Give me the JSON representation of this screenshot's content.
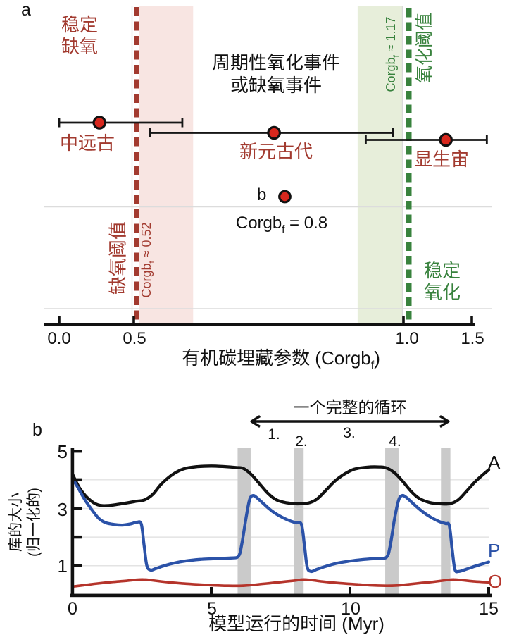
{
  "panel_a": {
    "label": "a",
    "stable_anoxic": [
      "稳定",
      "缺氧"
    ],
    "periodic_events": [
      "周期性氧化事件",
      "或缺氧事件"
    ],
    "anoxic_threshold_label": "缺氧阈值",
    "anoxic_threshold_value": {
      "pre": "Corgb",
      "sub": "f",
      "post": " ≈ 0.52"
    },
    "oxic_threshold_label": "氧化阈值",
    "oxic_threshold_value": {
      "pre": "Corgb",
      "sub": "f",
      "post": " ≈ 1.17"
    },
    "stable_oxic": [
      "稳定",
      "氧化"
    ],
    "b_marker_label": "b",
    "b_marker_equation": {
      "pre": "Corgb",
      "sub": "f",
      "post": " = 0.8"
    },
    "axis_title": {
      "pre": "有机碳埋藏参数 (Corgb",
      "sub": "f",
      "post": ")"
    },
    "colors": {
      "anoxic": "#a23a2f",
      "oxic": "#38823d",
      "anoxic_band": "#f8e5e2",
      "oxic_band": "#e7eeda",
      "point_fill": "#d7271d"
    }
  },
  "panel_b": {
    "label": "b",
    "colors": {
      "event_band": "#cacaca"
    }
  },
  "chart_data": [
    {
      "panel": "a",
      "type": "scatter",
      "xlabel": "有机碳埋藏参数 (Corgbf)",
      "xlim": [
        0,
        1.5
      ],
      "x_ticks": [
        0,
        0.5,
        1,
        1.5
      ],
      "x_tick_labels": [
        "0.0",
        "0.5",
        "1.0",
        "1.5"
      ],
      "axis_note": "schematic nonlinear x scale (0.5-1.0 stretched)",
      "points": [
        {
          "label": "中远古",
          "x": 0.27,
          "xmin": 0.0,
          "xmax": 0.59
        },
        {
          "label": "新元古代",
          "x": 0.76,
          "xmin": 0.53,
          "xmax": 0.98
        },
        {
          "label": "显生宙",
          "x": 1.31,
          "xmin": 0.93,
          "xmax": 1.61
        }
      ],
      "b_marker": {
        "x": 0.78,
        "label": "b",
        "caption": "Corgbf = 0.8"
      },
      "anoxic": {
        "zone_label": "稳定缺氧",
        "threshold": "Corgbf ≈ 0.52",
        "line_x": 0.505,
        "band": [
          0.51,
          0.61
        ]
      },
      "oxic": {
        "zone_label": "稳定氧化",
        "threshold": "Corgbf ≈ 1.17",
        "line_x": 1.04,
        "band": [
          0.915,
          1.0
        ]
      },
      "middle_zone_label": "周期性氧化事件或缺氧事件"
    },
    {
      "panel": "b",
      "type": "line",
      "xlabel": "模型运行的时间 (Myr)",
      "ylabel": "库的大小 (归一化的)",
      "xlim": [
        0,
        15
      ],
      "ylim": [
        0,
        5
      ],
      "x_ticks": [
        0,
        5,
        10,
        15
      ],
      "x_tick_labels": [
        "0",
        "5",
        "10",
        "15"
      ],
      "y_ticks": [
        1,
        2,
        3,
        4,
        5
      ],
      "labeled_y_ticks": [
        {
          "v": 5,
          "label": "5"
        },
        {
          "v": 3,
          "label": "3"
        },
        {
          "v": 1,
          "label": "1"
        }
      ],
      "event_bands": [
        [
          5.95,
          6.42
        ],
        [
          7.97,
          8.33
        ],
        [
          11.27,
          11.75
        ],
        [
          13.28,
          13.62
        ]
      ],
      "cycle_annotation": {
        "label": "一个完整的循环",
        "span": [
          6.45,
          13.55
        ],
        "steps": [
          {
            "n": "1.",
            "t": 7.25
          },
          {
            "n": "2.",
            "t": 8.25
          },
          {
            "n": "3.",
            "t": 10.0
          },
          {
            "n": "4.",
            "t": 11.6
          }
        ]
      },
      "series": [
        {
          "name": "A",
          "color": "#111111",
          "points": [
            [
              0,
              4.2
            ],
            [
              0.25,
              3.72
            ],
            [
              0.55,
              3.36
            ],
            [
              0.9,
              3.13
            ],
            [
              1.3,
              3.1
            ],
            [
              1.8,
              3.17
            ],
            [
              2.3,
              3.25
            ],
            [
              2.6,
              3.3
            ],
            [
              2.9,
              3.5
            ],
            [
              3.2,
              3.85
            ],
            [
              3.6,
              4.18
            ],
            [
              4.0,
              4.38
            ],
            [
              4.5,
              4.46
            ],
            [
              5.0,
              4.48
            ],
            [
              5.5,
              4.46
            ],
            [
              5.9,
              4.43
            ],
            [
              6.15,
              4.4
            ],
            [
              6.45,
              4.18
            ],
            [
              6.75,
              3.85
            ],
            [
              7.05,
              3.52
            ],
            [
              7.35,
              3.3
            ],
            [
              7.7,
              3.2
            ],
            [
              8.1,
              3.16
            ],
            [
              8.5,
              3.19
            ],
            [
              8.8,
              3.32
            ],
            [
              9.1,
              3.6
            ],
            [
              9.45,
              3.95
            ],
            [
              9.8,
              4.2
            ],
            [
              10.15,
              4.37
            ],
            [
              10.6,
              4.44
            ],
            [
              11.05,
              4.45
            ],
            [
              11.3,
              4.42
            ],
            [
              11.6,
              4.25
            ],
            [
              11.9,
              3.95
            ],
            [
              12.2,
              3.6
            ],
            [
              12.5,
              3.35
            ],
            [
              12.9,
              3.2
            ],
            [
              13.3,
              3.16
            ],
            [
              13.62,
              3.17
            ],
            [
              13.9,
              3.3
            ],
            [
              14.2,
              3.6
            ],
            [
              14.55,
              3.97
            ],
            [
              15,
              4.35
            ]
          ]
        },
        {
          "name": "P",
          "color": "#2b52a8",
          "points": [
            [
              0,
              4.05
            ],
            [
              0.2,
              3.72
            ],
            [
              0.45,
              3.3
            ],
            [
              0.7,
              2.95
            ],
            [
              0.95,
              2.65
            ],
            [
              1.2,
              2.5
            ],
            [
              1.5,
              2.44
            ],
            [
              1.8,
              2.42
            ],
            [
              2.1,
              2.46
            ],
            [
              2.32,
              2.52
            ],
            [
              2.48,
              2.45
            ],
            [
              2.58,
              1.7
            ],
            [
              2.68,
              1.0
            ],
            [
              2.82,
              0.85
            ],
            [
              3.0,
              0.9
            ],
            [
              3.3,
              1.0
            ],
            [
              3.7,
              1.1
            ],
            [
              4.1,
              1.17
            ],
            [
              4.6,
              1.22
            ],
            [
              5.2,
              1.25
            ],
            [
              5.7,
              1.27
            ],
            [
              5.98,
              1.33
            ],
            [
              6.1,
              1.75
            ],
            [
              6.25,
              2.65
            ],
            [
              6.38,
              3.3
            ],
            [
              6.5,
              3.45
            ],
            [
              6.65,
              3.37
            ],
            [
              6.9,
              3.15
            ],
            [
              7.2,
              2.9
            ],
            [
              7.5,
              2.72
            ],
            [
              7.8,
              2.58
            ],
            [
              8.05,
              2.5
            ],
            [
              8.25,
              2.44
            ],
            [
              8.36,
              1.7
            ],
            [
              8.46,
              0.95
            ],
            [
              8.6,
              0.8
            ],
            [
              8.8,
              0.87
            ],
            [
              9.1,
              0.97
            ],
            [
              9.5,
              1.08
            ],
            [
              9.9,
              1.15
            ],
            [
              10.4,
              1.21
            ],
            [
              11.0,
              1.26
            ],
            [
              11.32,
              1.3
            ],
            [
              11.45,
              1.7
            ],
            [
              11.6,
              2.6
            ],
            [
              11.75,
              3.28
            ],
            [
              11.88,
              3.45
            ],
            [
              12.05,
              3.37
            ],
            [
              12.3,
              3.15
            ],
            [
              12.6,
              2.9
            ],
            [
              12.9,
              2.7
            ],
            [
              13.2,
              2.55
            ],
            [
              13.45,
              2.47
            ],
            [
              13.58,
              2.4
            ],
            [
              13.68,
              1.6
            ],
            [
              13.78,
              0.88
            ],
            [
              13.92,
              0.8
            ],
            [
              14.2,
              0.88
            ],
            [
              14.5,
              0.98
            ],
            [
              14.8,
              1.07
            ],
            [
              15,
              1.13
            ]
          ]
        },
        {
          "name": "O",
          "color": "#b5342b",
          "points": [
            [
              0,
              0.27
            ],
            [
              0.4,
              0.32
            ],
            [
              0.9,
              0.38
            ],
            [
              1.4,
              0.43
            ],
            [
              1.9,
              0.47
            ],
            [
              2.3,
              0.51
            ],
            [
              2.55,
              0.52
            ],
            [
              2.8,
              0.5
            ],
            [
              3.2,
              0.45
            ],
            [
              3.7,
              0.4
            ],
            [
              4.3,
              0.36
            ],
            [
              5.0,
              0.32
            ],
            [
              5.6,
              0.3
            ],
            [
              6.1,
              0.3
            ],
            [
              6.5,
              0.33
            ],
            [
              7.0,
              0.38
            ],
            [
              7.5,
              0.43
            ],
            [
              8.0,
              0.48
            ],
            [
              8.3,
              0.52
            ],
            [
              8.6,
              0.5
            ],
            [
              9.0,
              0.45
            ],
            [
              9.5,
              0.4
            ],
            [
              10.1,
              0.36
            ],
            [
              10.7,
              0.32
            ],
            [
              11.3,
              0.3
            ],
            [
              11.7,
              0.31
            ],
            [
              12.1,
              0.35
            ],
            [
              12.6,
              0.4
            ],
            [
              13.1,
              0.45
            ],
            [
              13.5,
              0.5
            ],
            [
              13.75,
              0.52
            ],
            [
              14.1,
              0.49
            ],
            [
              14.5,
              0.45
            ],
            [
              15,
              0.42
            ]
          ]
        }
      ]
    }
  ]
}
